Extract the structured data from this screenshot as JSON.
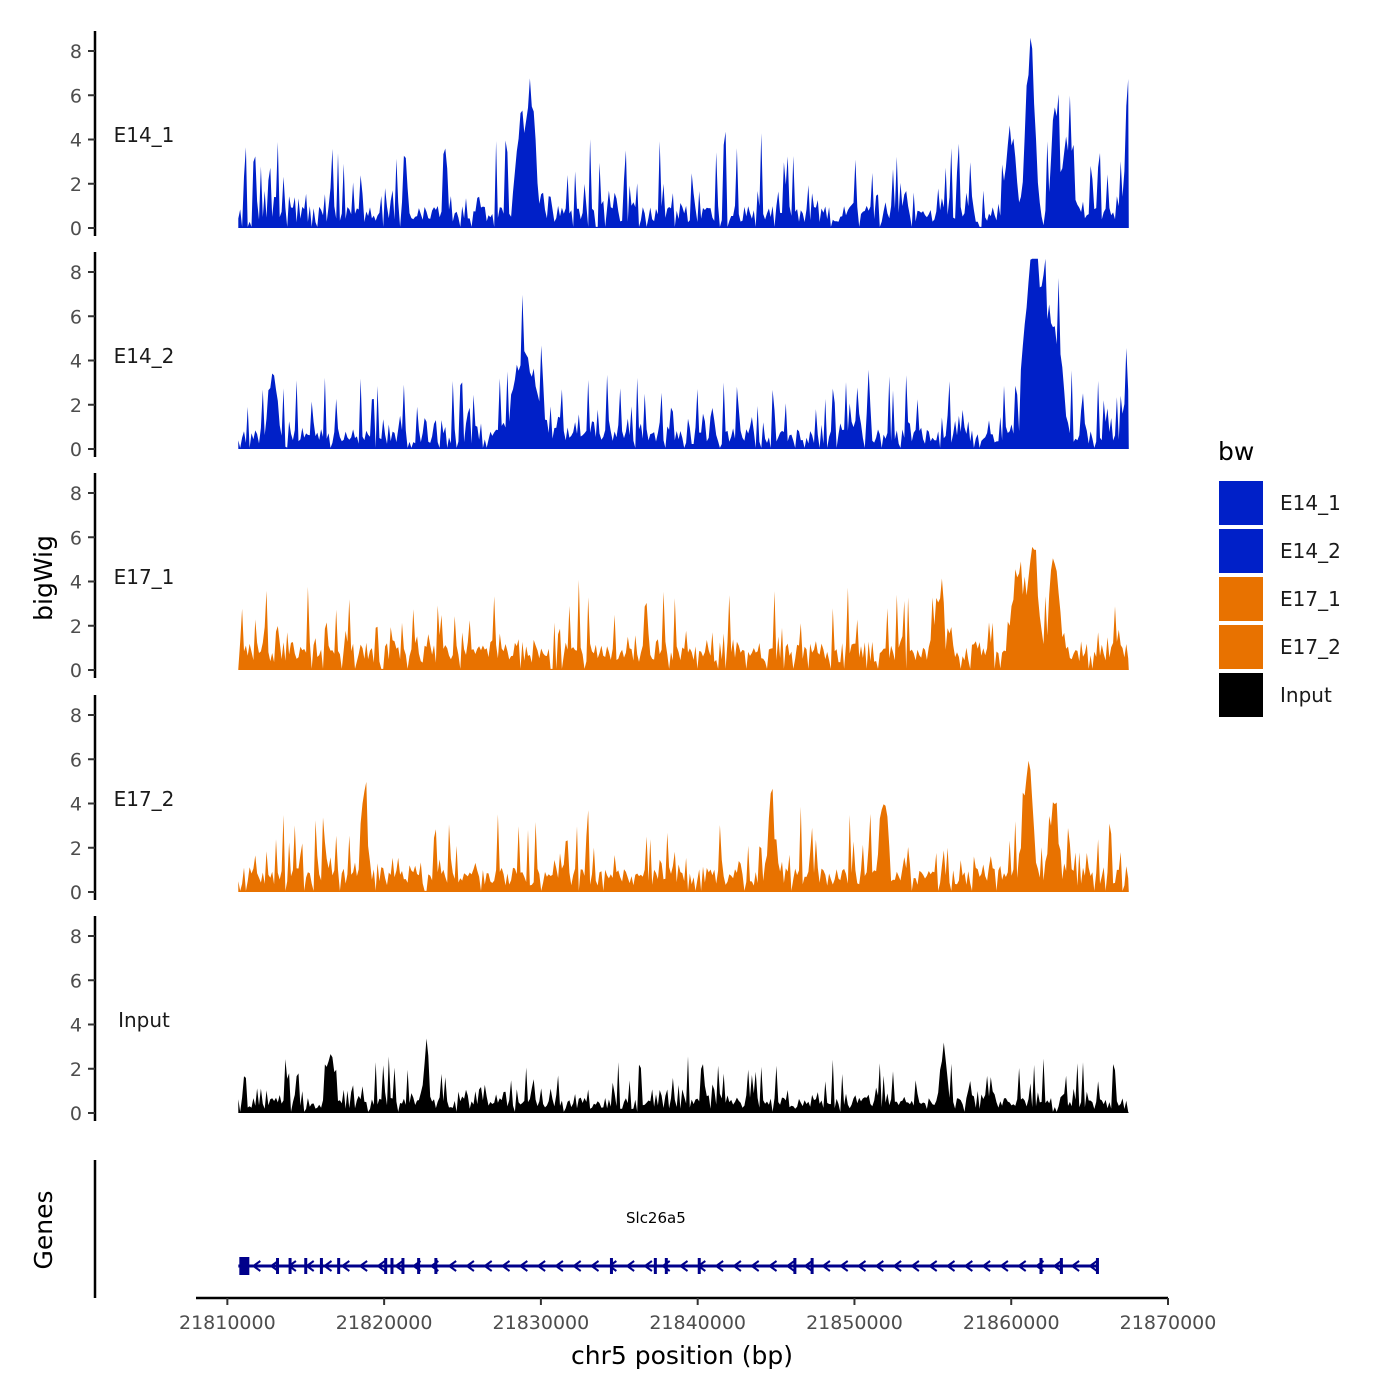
{
  "chart_data": {
    "type": "area",
    "y_axis_title": "bigWig",
    "x_axis_title": "chr5 position (bp)",
    "gene_track_title": "Genes",
    "xlim": [
      21808000,
      21870000
    ],
    "ylim": [
      0,
      8.8
    ],
    "y_ticks": [
      0,
      2,
      4,
      6,
      8
    ],
    "x_ticks": [
      21810000,
      21820000,
      21830000,
      21840000,
      21850000,
      21860000,
      21870000
    ],
    "data_range": [
      21810700,
      21867500
    ],
    "legend": {
      "title": "bw",
      "placement": "right",
      "entries": [
        {
          "name": "E14_1",
          "color": "#0020c8"
        },
        {
          "name": "E14_2",
          "color": "#0020c8"
        },
        {
          "name": "E17_1",
          "color": "#e87200"
        },
        {
          "name": "E17_2",
          "color": "#e87200"
        },
        {
          "name": "Input",
          "color": "#000000"
        }
      ]
    },
    "series": [
      {
        "name": "E14_1",
        "label": "E14_1",
        "color": "#0020c8",
        "seed": 11,
        "base": 1.0,
        "noise": 1.2,
        "dip_prob": 0.09,
        "peaks": [
          {
            "x": 21829400,
            "h": 4.8,
            "w": 300
          },
          {
            "x": 21828800,
            "h": 3.3,
            "w": 300
          },
          {
            "x": 21861200,
            "h": 8.5,
            "w": 250
          },
          {
            "x": 21860000,
            "h": 4.2,
            "w": 300
          },
          {
            "x": 21862800,
            "h": 5.0,
            "w": 250
          },
          {
            "x": 21863600,
            "h": 4.0,
            "w": 250
          },
          {
            "x": 21867400,
            "h": 3.2,
            "w": 200
          }
        ]
      },
      {
        "name": "E14_2",
        "label": "E14_2",
        "color": "#0020c8",
        "seed": 23,
        "base": 0.9,
        "noise": 1.0,
        "dip_prob": 0.09,
        "peaks": [
          {
            "x": 21829000,
            "h": 3.8,
            "w": 700
          },
          {
            "x": 21861100,
            "h": 6.5,
            "w": 300
          },
          {
            "x": 21861600,
            "h": 8.2,
            "w": 250
          },
          {
            "x": 21862300,
            "h": 5.8,
            "w": 300
          },
          {
            "x": 21863000,
            "h": 4.5,
            "w": 300
          },
          {
            "x": 21813000,
            "h": 3.0,
            "w": 250
          },
          {
            "x": 21867400,
            "h": 2.8,
            "w": 200
          }
        ]
      },
      {
        "name": "E17_1",
        "label": "E17_1",
        "color": "#e87200",
        "seed": 37,
        "base": 1.3,
        "noise": 1.1,
        "dip_prob": 0.06,
        "peaks": [
          {
            "x": 21861400,
            "h": 4.6,
            "w": 300
          },
          {
            "x": 21862700,
            "h": 3.9,
            "w": 300
          },
          {
            "x": 21855400,
            "h": 3.6,
            "w": 250
          },
          {
            "x": 21860400,
            "h": 3.5,
            "w": 350
          }
        ]
      },
      {
        "name": "E17_2",
        "label": "E17_2",
        "color": "#e87200",
        "seed": 53,
        "base": 1.1,
        "noise": 1.0,
        "dip_prob": 0.07,
        "peaks": [
          {
            "x": 21861100,
            "h": 5.1,
            "w": 300
          },
          {
            "x": 21844700,
            "h": 4.0,
            "w": 200
          },
          {
            "x": 21851800,
            "h": 3.9,
            "w": 200
          },
          {
            "x": 21818700,
            "h": 3.8,
            "w": 200
          },
          {
            "x": 21862700,
            "h": 3.6,
            "w": 250
          }
        ]
      },
      {
        "name": "Input",
        "label": "Input",
        "color": "#000000",
        "seed": 71,
        "base": 0.7,
        "noise": 0.7,
        "dip_prob": 0.03,
        "peaks": [
          {
            "x": 21822700,
            "h": 2.8,
            "w": 150
          },
          {
            "x": 21816600,
            "h": 2.4,
            "w": 200
          },
          {
            "x": 21855700,
            "h": 2.4,
            "w": 200
          }
        ]
      }
    ],
    "gene": {
      "name": "Slc26a5",
      "strand": "-",
      "color": "#00008b",
      "start": 21810700,
      "end": 21865500,
      "exons": [
        21810900,
        21813200,
        21814000,
        21815000,
        21816000,
        21817100,
        21820100,
        21820500,
        21821200,
        21822200,
        21823300,
        21834500,
        21837300,
        21838000,
        21840100,
        21846200,
        21847300,
        21861900,
        21863200,
        21865500
      ]
    }
  }
}
